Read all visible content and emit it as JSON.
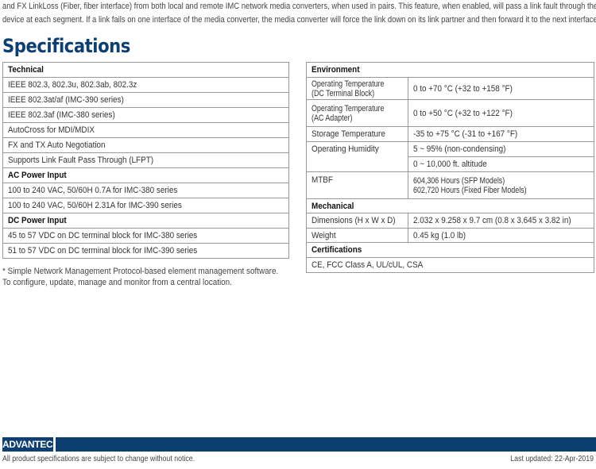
{
  "intro": {
    "line1": "and FX LinkLoss (Fiber, fiber interface) from both local and remote IMC network media converters, when used in pairs.  This feature, when enabled, will pass a link fault through the",
    "line2": "device at each segment.  If a link fails on one interface of the media converter, the media converter will force the link down on its link partner and then forward it to the next interface."
  },
  "title": "Specifications",
  "left_table": [
    {
      "header": "Technical"
    },
    {
      "text": "IEEE 802.3, 802.3u, 802.3ab, 802.3z"
    },
    {
      "text": "IEEE 802.3at/af (IMC-390 series)"
    },
    {
      "text": "IEEE 802.3af (IMC-380 series)"
    },
    {
      "text": "AutoCross for MDI/MDIX"
    },
    {
      "text": "FX and TX Auto Negotiation"
    },
    {
      "text": "Supports Link Fault Pass Through (LFPT)"
    },
    {
      "header": "AC Power Input"
    },
    {
      "text": "100 to 240 VAC, 50/60H 0.7A for IMC-380 series"
    },
    {
      "text": "100 to 240 VAC, 50/60H 2.31A for IMC-390 series"
    },
    {
      "header": "DC Power Input"
    },
    {
      "text": "45 to 57 VDC on DC terminal block for IMC-380 series"
    },
    {
      "text": "51 to 57 VDC on DC terminal block for IMC-390 series"
    }
  ],
  "right_table": {
    "environment": "Environment",
    "op_temp_dc_label": [
      "Operating Temperature",
      "(DC Terminal Block)"
    ],
    "op_temp_dc": "0 to +70 °C (+32 to +158 °F)",
    "op_temp_ac_label": [
      "Operating Temperature",
      "(AC Adapter)"
    ],
    "op_temp_ac": "0 to +50 °C (+32 to +122 °F)",
    "storage_label": "Storage Temperature",
    "storage": "-35 to +75 °C (-31 to +167 °F)",
    "humidity_label": "Operating Humidity",
    "humidity": "5 ~ 95% (non-condensing)",
    "altitude": "0 ~ 10,000 ft. altitude",
    "mtbf_label": "MTBF",
    "mtbf": [
      "604,306 Hours (SFP Models)",
      "602,720 Hours (Fixed Fiber Models)"
    ],
    "mechanical": "Mechanical",
    "dimensions_label": "Dimensions (H x W x D)",
    "dimensions": "2.032 x 9.258 x 9.7 cm (0.8 x 3.645 x 3.82 in)",
    "weight_label": "Weight",
    "weight": "0.45 kg (1.0 lb)",
    "certifications": "Certifications",
    "certs": "CE, FCC Class A, UL/cUL, CSA"
  },
  "note": {
    "line1": "* Simple Network Management Protocol-based element management software.",
    "line2": "To configure, update, manage and monitor from a central location."
  },
  "footer": {
    "logo": "ADVANTECH",
    "disclaimer": "All product specifications are subject to change without notice.",
    "updated": "Last updated: 22-Apr-2019",
    "brand_blue": "#0d3f72"
  }
}
